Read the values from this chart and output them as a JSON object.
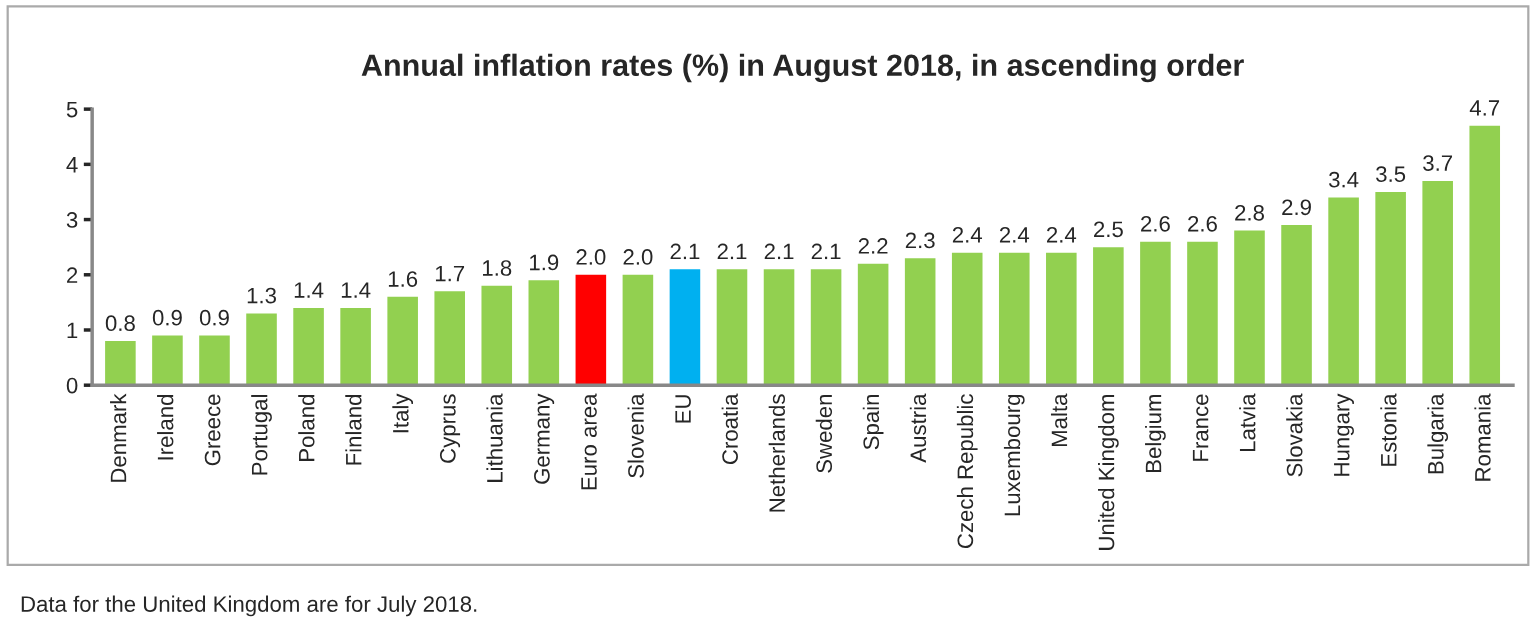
{
  "chart_data": {
    "type": "bar",
    "title": "Annual inflation rates (%) in August 2018, in ascending order",
    "categories": [
      "Denmark",
      "Ireland",
      "Greece",
      "Portugal",
      "Poland",
      "Finland",
      "Italy",
      "Cyprus",
      "Lithuania",
      "Germany",
      "Euro area",
      "Slovenia",
      "EU",
      "Croatia",
      "Netherlands",
      "Sweden",
      "Spain",
      "Austria",
      "Czech Republic",
      "Luxembourg",
      "Malta",
      "United Kingdom",
      "Belgium",
      "France",
      "Latvia",
      "Slovakia",
      "Hungary",
      "Estonia",
      "Bulgaria",
      "Romania"
    ],
    "values": [
      0.8,
      0.9,
      0.9,
      1.3,
      1.4,
      1.4,
      1.6,
      1.7,
      1.8,
      1.9,
      2.0,
      2.0,
      2.1,
      2.1,
      2.1,
      2.1,
      2.2,
      2.3,
      2.4,
      2.4,
      2.4,
      2.5,
      2.6,
      2.6,
      2.8,
      2.9,
      3.4,
      3.5,
      3.7,
      4.7
    ],
    "colors": [
      "#92d050",
      "#92d050",
      "#92d050",
      "#92d050",
      "#92d050",
      "#92d050",
      "#92d050",
      "#92d050",
      "#92d050",
      "#92d050",
      "#ff0000",
      "#92d050",
      "#00b0f0",
      "#92d050",
      "#92d050",
      "#92d050",
      "#92d050",
      "#92d050",
      "#92d050",
      "#92d050",
      "#92d050",
      "#92d050",
      "#92d050",
      "#92d050",
      "#92d050",
      "#92d050",
      "#92d050",
      "#92d050",
      "#92d050",
      "#92d050"
    ],
    "ylim": [
      0,
      5
    ],
    "yticks": [
      0,
      1,
      2,
      3,
      4,
      5
    ],
    "grid": false,
    "legend": false,
    "value_labels": [
      "0.8",
      "0.9",
      "0.9",
      "1.3",
      "1.4",
      "1.4",
      "1.6",
      "1.7",
      "1.8",
      "1.9",
      "2.0",
      "2.0",
      "2.1",
      "2.1",
      "2.1",
      "2.1",
      "2.2",
      "2.3",
      "2.4",
      "2.4",
      "2.4",
      "2.5",
      "2.6",
      "2.6",
      "2.8",
      "2.9",
      "3.4",
      "3.5",
      "3.7",
      "4.7"
    ],
    "annotations": [
      "Data for the United Kingdom are for July 2018."
    ]
  }
}
